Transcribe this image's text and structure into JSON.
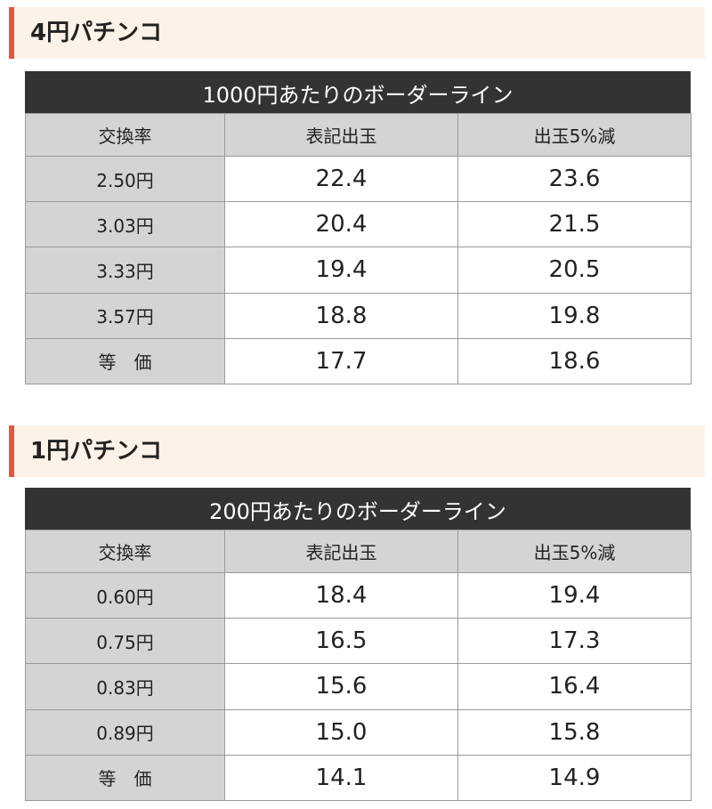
{
  "sections": [
    {
      "title": "4円パチンコ",
      "table": {
        "caption": "1000円あたりのボーダーライン",
        "header": [
          "交換率",
          "表記出玉",
          "出玉5%減"
        ],
        "rows": [
          [
            "2.50円",
            "22.4",
            "23.6"
          ],
          [
            "3.03円",
            "20.4",
            "21.5"
          ],
          [
            "3.33円",
            "19.4",
            "20.5"
          ],
          [
            "3.57円",
            "18.8",
            "19.8"
          ],
          [
            "等　価",
            "17.7",
            "18.6"
          ]
        ]
      }
    },
    {
      "title": "1円パチンコ",
      "table": {
        "caption": "200円あたりのボーダーライン",
        "header": [
          "交換率",
          "表記出玉",
          "出玉5%減"
        ],
        "rows": [
          [
            "0.60円",
            "18.4",
            "19.4"
          ],
          [
            "0.75円",
            "16.5",
            "17.3"
          ],
          [
            "0.83円",
            "15.6",
            "16.4"
          ],
          [
            "0.89円",
            "15.0",
            "15.8"
          ],
          [
            "等　価",
            "14.1",
            "14.9"
          ]
        ]
      }
    }
  ]
}
